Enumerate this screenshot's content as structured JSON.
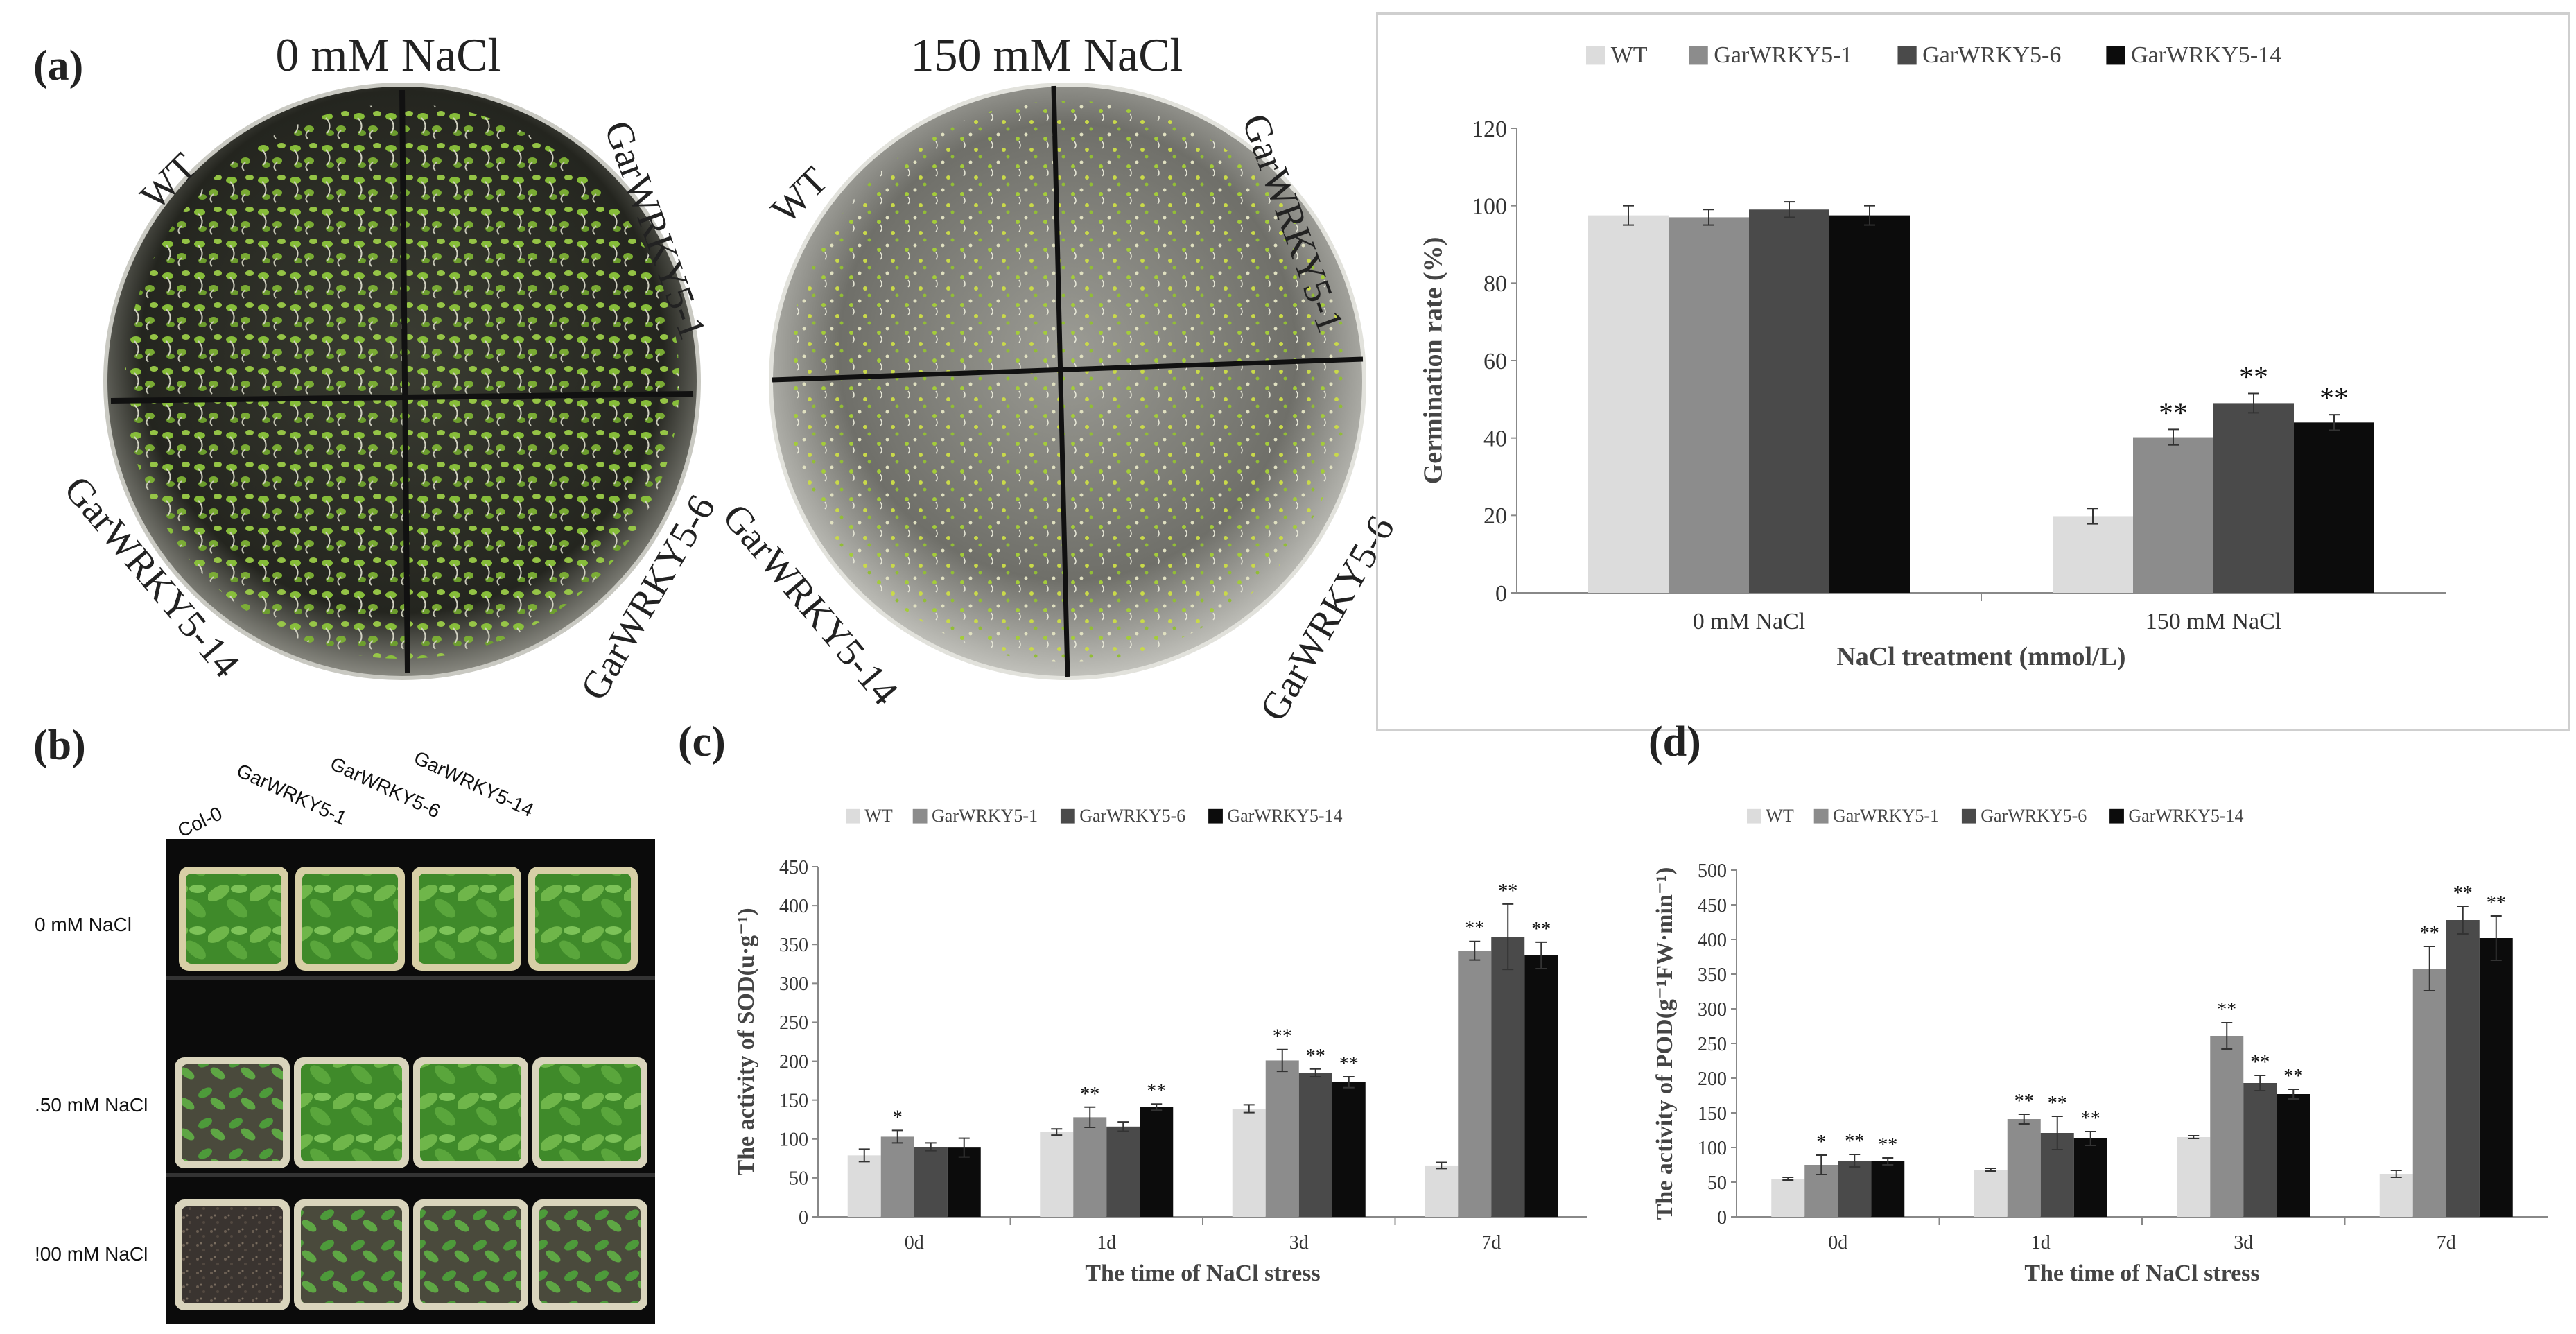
{
  "panels": {
    "a": {
      "label": "(a)",
      "plate_titles": [
        "0 mM NaCl",
        "150 mM NaCl"
      ],
      "plate_labels": [
        "WT",
        "GarWRKY5-1",
        "GarWRKY5-6",
        "GarWRKY5-14"
      ]
    },
    "b": {
      "label": "(b)",
      "column_labels": [
        "Col-0",
        "GarWRKY5-1",
        "GarWRKY5-6",
        "GarWRKY5-14"
      ],
      "row_labels": [
        "0 mM NaCl",
        ".50 mM NaCl",
        "!00 mM NaCl"
      ]
    },
    "c": {
      "label": "(c)"
    },
    "d": {
      "label": "(d)"
    }
  },
  "colors": {
    "WT": "#dcdcdc",
    "GarWRKY5-1": "#8c8c8c",
    "GarWRKY5-6": "#4a4a4a",
    "GarWRKY5-14": "#0c0c0c",
    "seedling_green": "#7bb02a",
    "plate_dark": "#2c2c24",
    "photo_bg": "#0a0a0a"
  },
  "chart_data": [
    {
      "id": "a",
      "type": "bar",
      "legend": [
        "WT",
        "GarWRKY5-1",
        "GarWRKY5-6",
        "GarWRKY5-14"
      ],
      "legend_position": "top",
      "categories": [
        "0 mM NaCl",
        "150 mM NaCl"
      ],
      "series": [
        {
          "name": "WT",
          "values": [
            97.5,
            19.8
          ],
          "errors": [
            2.5,
            2.0
          ],
          "sig": [
            "",
            ""
          ]
        },
        {
          "name": "GarWRKY5-1",
          "values": [
            97,
            40.2
          ],
          "errors": [
            2.0,
            2.0
          ],
          "sig": [
            "",
            "**"
          ]
        },
        {
          "name": "GarWRKY5-6",
          "values": [
            99,
            49
          ],
          "errors": [
            2.0,
            2.5
          ],
          "sig": [
            "",
            "**"
          ]
        },
        {
          "name": "GarWRKY5-14",
          "values": [
            97.5,
            44
          ],
          "errors": [
            2.5,
            2.0
          ],
          "sig": [
            "",
            "**"
          ]
        }
      ],
      "xlabel": "NaCl treatment  (mmol/L)",
      "ylabel": "Germination  rate (%)",
      "ylim": [
        0,
        120
      ],
      "yticks": [
        "0",
        "20",
        "40",
        "60",
        "80",
        "100",
        "120"
      ]
    },
    {
      "id": "c",
      "type": "bar",
      "legend": [
        "WT",
        "GarWRKY5-1",
        "GarWRKY5-6",
        "GarWRKY5-14"
      ],
      "legend_position": "top",
      "categories": [
        "0d",
        "1d",
        "3d",
        "7d"
      ],
      "series": [
        {
          "name": "WT",
          "values": [
            79,
            109,
            139,
            66
          ],
          "errors": [
            8,
            4,
            5,
            4
          ],
          "sig": [
            "",
            "",
            "",
            ""
          ]
        },
        {
          "name": "GarWRKY5-1",
          "values": [
            103,
            128,
            201,
            342
          ],
          "errors": [
            8,
            13,
            14,
            12
          ],
          "sig": [
            "*",
            "**",
            "**",
            "**"
          ]
        },
        {
          "name": "GarWRKY5-6",
          "values": [
            90,
            116,
            185,
            360
          ],
          "errors": [
            5,
            6,
            5,
            42
          ],
          "sig": [
            "",
            "",
            "**",
            "**"
          ]
        },
        {
          "name": "GarWRKY5-14",
          "values": [
            89,
            141,
            173,
            336
          ],
          "errors": [
            12,
            4,
            7,
            17
          ],
          "sig": [
            "",
            "**",
            "**",
            "**"
          ]
        }
      ],
      "xlabel": "The time of NaCl stress",
      "ylabel": "The activity of SOD(u·g⁻¹)",
      "ylim": [
        0,
        450
      ],
      "yticks": [
        "0",
        "50",
        "100",
        "150",
        "200",
        "250",
        "300",
        "350",
        "400",
        "450"
      ]
    },
    {
      "id": "d",
      "type": "bar",
      "legend": [
        "WT",
        "GarWRKY5-1",
        "GarWRKY5-6",
        "GarWRKY5-14"
      ],
      "legend_position": "top",
      "categories": [
        "0d",
        "1d",
        "3d",
        "7d"
      ],
      "series": [
        {
          "name": "WT",
          "values": [
            55,
            68,
            115,
            62
          ],
          "errors": [
            2,
            2,
            2,
            5
          ],
          "sig": [
            "",
            "",
            "",
            ""
          ]
        },
        {
          "name": "GarWRKY5-1",
          "values": [
            75,
            141,
            261,
            358
          ],
          "errors": [
            14,
            7,
            19,
            32
          ],
          "sig": [
            "*",
            "**",
            "**",
            "**"
          ]
        },
        {
          "name": "GarWRKY5-6",
          "values": [
            81,
            121,
            193,
            428
          ],
          "errors": [
            9,
            24,
            11,
            20
          ],
          "sig": [
            "**",
            "**",
            "**",
            "**"
          ]
        },
        {
          "name": "GarWRKY5-14",
          "values": [
            80,
            113,
            177,
            402
          ],
          "errors": [
            5,
            10,
            7,
            32
          ],
          "sig": [
            "**",
            "**",
            "**",
            "**"
          ]
        }
      ],
      "xlabel": "The time of NaCl stress",
      "ylabel": "The activity of POD(g⁻¹FW·min⁻¹)",
      "ylim": [
        0,
        500
      ],
      "yticks": [
        "0",
        "50",
        "100",
        "150",
        "200",
        "250",
        "300",
        "350",
        "400",
        "450",
        "500"
      ]
    }
  ]
}
